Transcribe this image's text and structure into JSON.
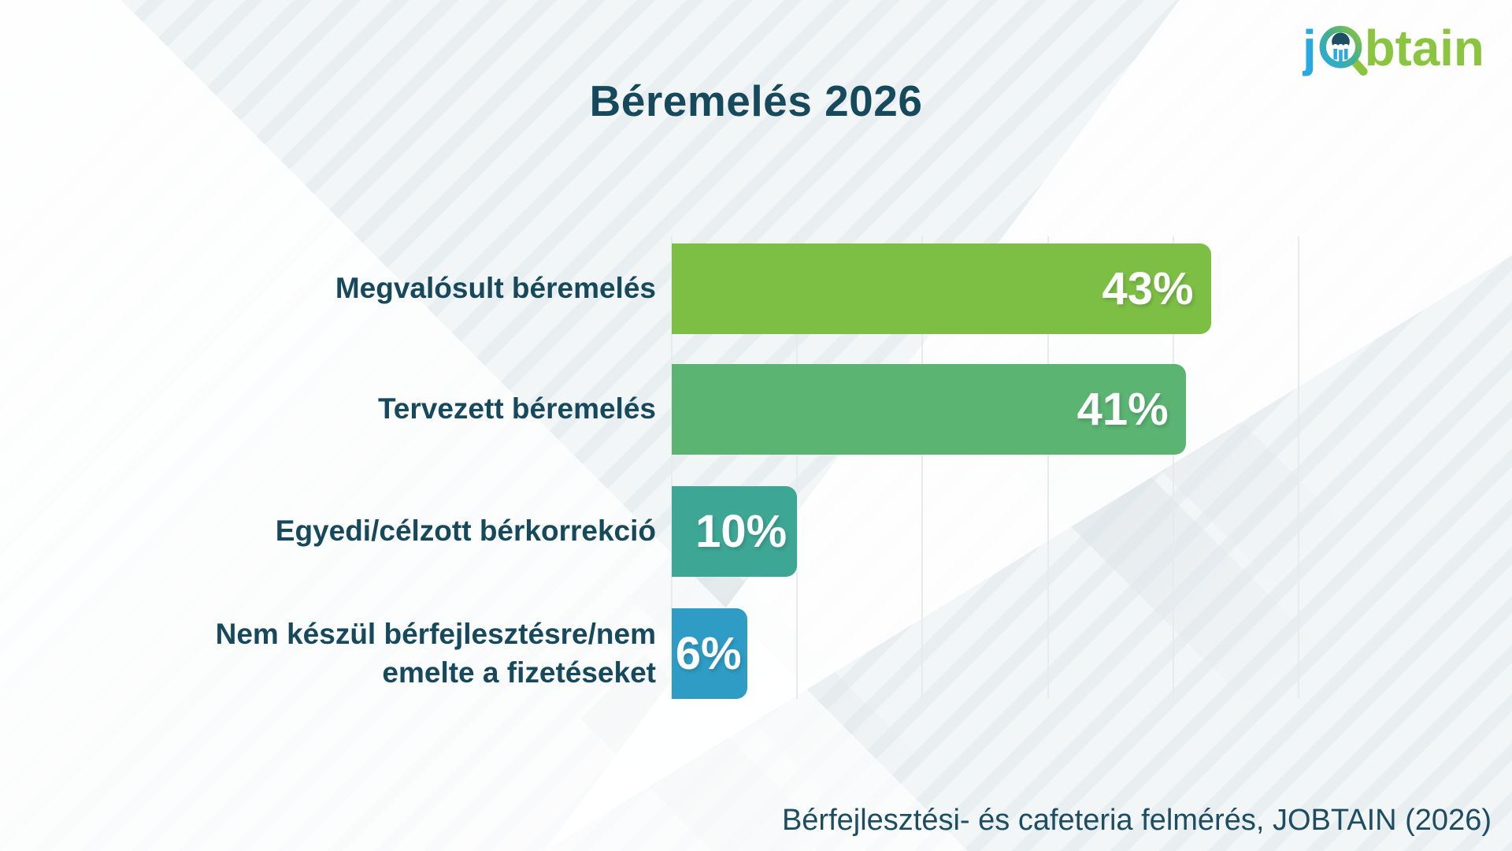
{
  "page": {
    "title": "Béremelés 2026",
    "source_note": "Bérfejlesztési- és cafeteria felmérés, JOBTAIN (2026)"
  },
  "logo": {
    "prefix": "j",
    "suffix": "btain",
    "blue": "#29a9e0",
    "green": "#8bc540",
    "dark": "#1d4f63"
  },
  "chart_data": {
    "type": "bar",
    "orientation": "horizontal",
    "title": "Béremelés 2026",
    "categories": [
      "Megvalósult béremelés",
      "Tervezett béremelés",
      "Egyedi/célzott bérkorrekció",
      "Nem készül bérfejlesztésre/nem emelte a fizetéseket"
    ],
    "values": [
      43,
      41,
      10,
      6
    ],
    "display_values": [
      "43%",
      "41%",
      "10%",
      "6%"
    ],
    "bar_colors": [
      "#7dbf44",
      "#5bb471",
      "#3ea695",
      "#2e9cc5"
    ],
    "xlim": [
      0,
      50
    ],
    "x_ticks": [
      0,
      10,
      20,
      30,
      40,
      50
    ],
    "grid": "vertical-light-gray, no tick labels",
    "legend": "none",
    "value_label_color": "#ffffff",
    "category_label_color": "#17495c"
  }
}
